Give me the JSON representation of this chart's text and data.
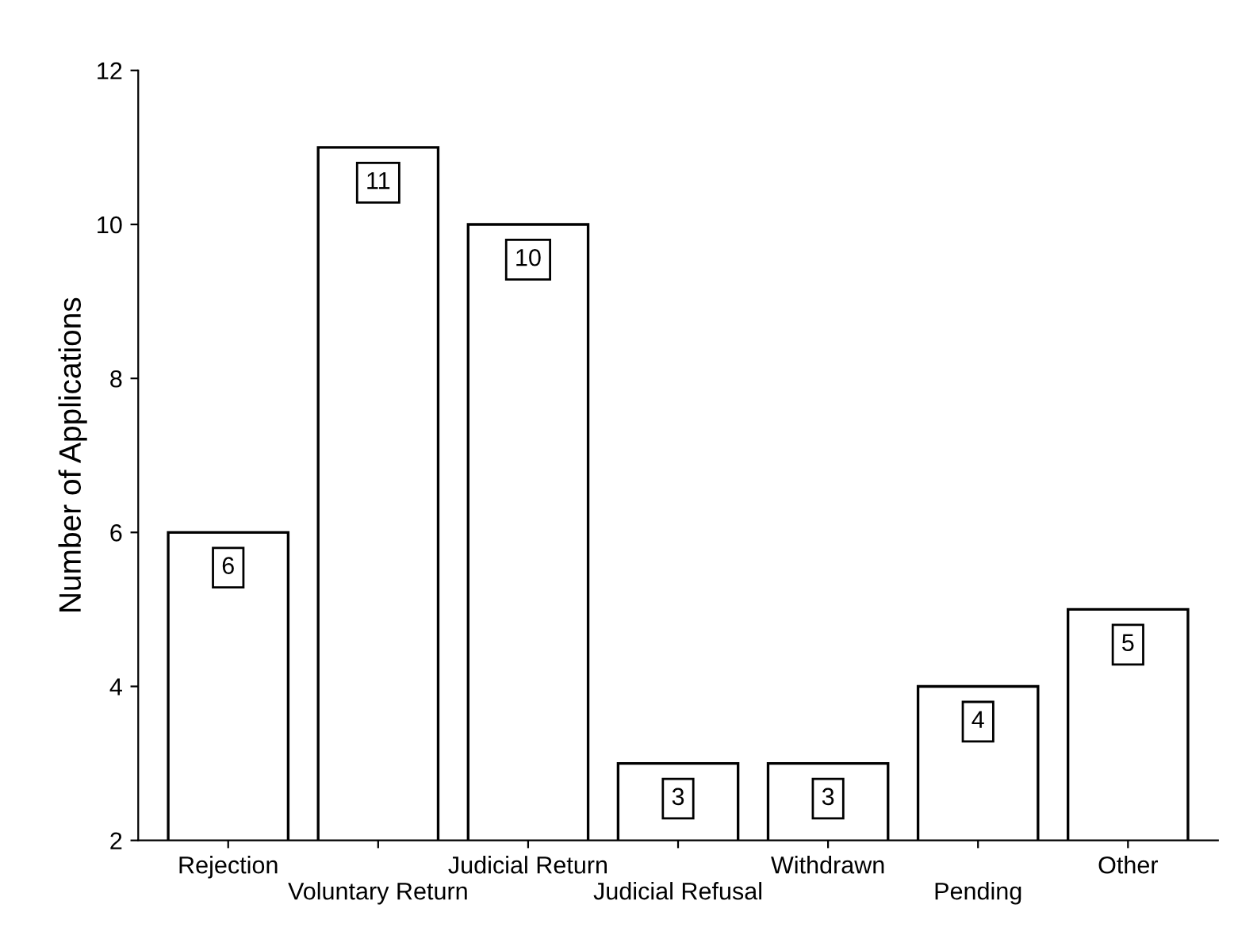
{
  "chart_data": {
    "type": "bar",
    "ylabel": "Number of Applications",
    "categories": [
      "Rejection",
      "Voluntary Return",
      "Judicial Return",
      "Judicial Refusal",
      "Withdrawn",
      "Pending",
      "Other"
    ],
    "values": [
      6,
      11,
      10,
      3,
      3,
      4,
      5
    ],
    "color": "#ffffff",
    "data_labels": true,
    "ylim": [
      2,
      12
    ],
    "yticks": [
      2,
      4,
      6,
      8,
      10,
      12
    ],
    "grid": false
  }
}
